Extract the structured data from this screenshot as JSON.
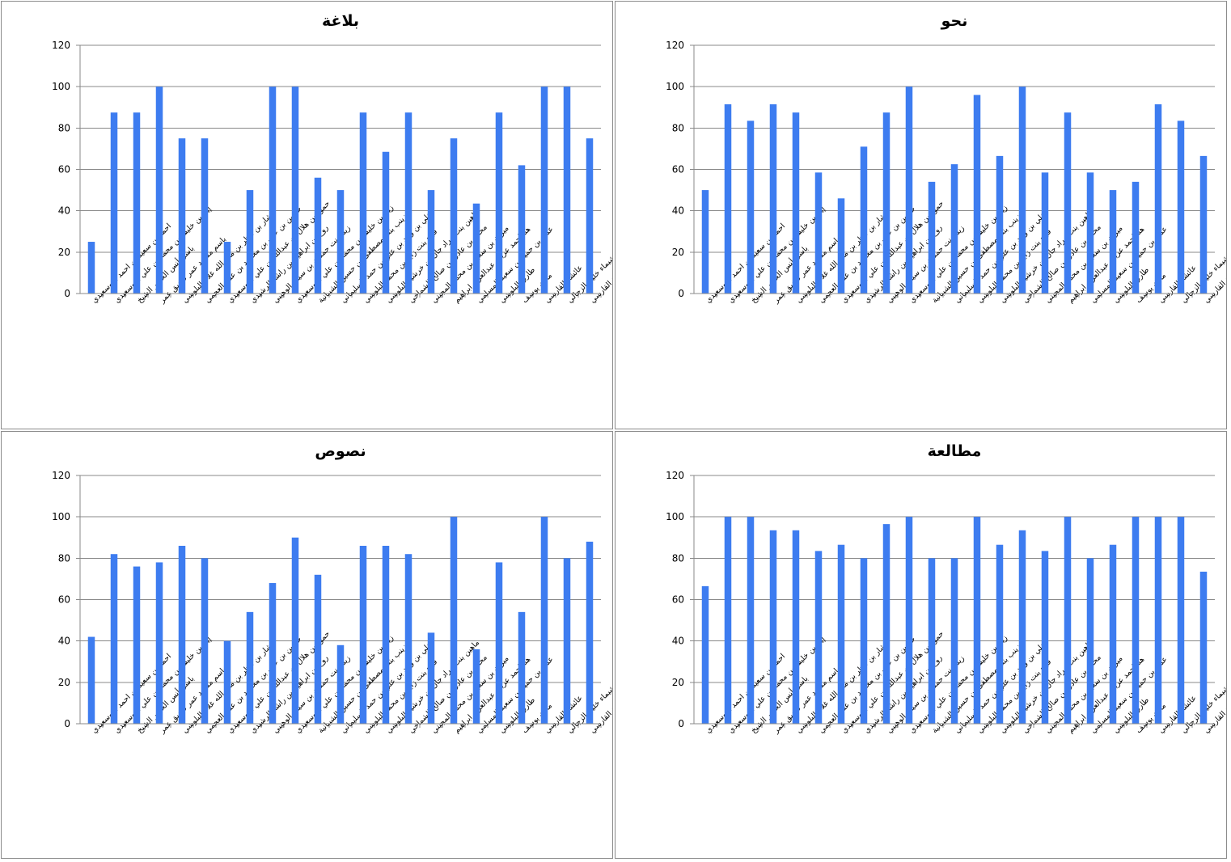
{
  "chart_data": [
    {
      "type": "bar",
      "title": "بلاغة",
      "categories": [
        "احمد بن سعيد بن احمد البوسعيدي",
        "إياد بن خليفة بن محمد بن علي البوسعيدي",
        "باسل أنس الخضر الشيخ",
        "باسم مسعد عمر صديق عمر",
        "بشار بن ناظر بن مال الله غلام البلوشي",
        "حسين بن علي بن محمود بن علي العجمي",
        "حمود بن هلال بن عبدالله بن علي البوسعيدي",
        "روح بن ابراهيم بن راشد الرشيدي",
        "زينة بنت حمدان بن سيف الوهيبي",
        "زياد بن خليفة بن محمد بن علي البوسعيدي",
        "زينب بنت مصطفى بن حسين الشيبانية",
        "علي بن وليد بن علي بن حمد السليماني",
        "فرح بنت زايد بن محمد البلوشي",
        "ماهين بنت مراد جان بن خرشيد البلوشي",
        "محمد بن عادل بن صالح الشماخي",
        "ميران بن سعيد بن محمد المجيني",
        "هنا احمد عريب عبدالعزيز ابراهيم",
        "عمار بن حميد بن سعيد المسلمي",
        "طارق البلوشي",
        "مازن يوسف",
        "عائشة القارسي",
        "شيماء خليل الزجالي",
        "فاطمة القارسي"
      ],
      "values": [
        25,
        87.5,
        87.5,
        100,
        75,
        75,
        25,
        50,
        100,
        100,
        56,
        50,
        87.5,
        68.5,
        87.5,
        50,
        75,
        43.5,
        87.5,
        62,
        100,
        100,
        75
      ],
      "ylim": [
        0,
        120
      ],
      "yticks": [
        0,
        20,
        40,
        60,
        80,
        100,
        120
      ],
      "grid": true,
      "color": "#3d7cf0"
    },
    {
      "type": "bar",
      "title": "نحو",
      "categories": [
        "احمد بن سعيد بن احمد البوسعيدي",
        "إياد بن خليفة بن محمد بن علي البوسعيدي",
        "باسل أنس الخضر الشيخ",
        "باسم مسعد عمر صديق عمر",
        "بشار بن ناظر بن مال الله غلام البلوشي",
        "حسين بن علي بن محمود بن علي العجمي",
        "حمود بن هلال بن عبدالله بن علي البوسعيدي",
        "روح بن ابراهيم بن راشد الرشيدي",
        "زينة بنت حمدان بن سيف الوهيبي",
        "زياد بن خليفة بن محمد بن علي البوسعيدي",
        "زينب بنت مصطفى بن حسين الشيبانية",
        "علي بن وليد بن علي بن حمد السليماني",
        "فرح بنت زايد بن محمد البلوشي",
        "ماهين بنت مراد جان بن خرشيد البلوشي",
        "محمد بن عادل بن صالح الشماخي",
        "ميران بن سعيد بن محمد المجيني",
        "هنا احمد عريب عبدالعزيز ابراهيم",
        "عمار بن حميد بن سعيد المسلمي",
        "طارق البلوشي",
        "مازن يوسف",
        "عائشة القارسي",
        "شيماء خليل الزجالي",
        "فاطمة القارسي"
      ],
      "values": [
        50,
        91.5,
        83.5,
        91.5,
        87.5,
        58.5,
        46,
        71,
        87.5,
        100,
        54,
        62.5,
        96,
        66.5,
        100,
        58.5,
        87.5,
        58.5,
        50,
        54,
        91.5,
        83.5,
        66.5
      ],
      "ylim": [
        0,
        120
      ],
      "yticks": [
        0,
        20,
        40,
        60,
        80,
        100,
        120
      ],
      "grid": true,
      "color": "#3d7cf0"
    },
    {
      "type": "bar",
      "title": "نصوص",
      "categories": [
        "احمد بن سعيد بن احمد البوسعيدي",
        "إياد بن خليفة بن محمد بن علي البوسعيدي",
        "باسل أنس الخضر الشيخ",
        "باسم مسعد عمر صديق عمر",
        "بشار بن ناظر بن مال الله غلام البلوشي",
        "حسين بن علي بن محمود بن علي العجمي",
        "حمود بن هلال بن عبدالله بن علي البوسعيدي",
        "روح بن ابراهيم بن راشد الرشيدي",
        "زينة بنت حمدان بن سيف الوهيبي",
        "زياد بن خليفة بن محمد بن علي البوسعيدي",
        "زينب بنت مصطفى بن حسين الشيبانية",
        "علي بن وليد بن علي بن حمد السليماني",
        "فرح بنت زايد بن محمد البلوشي",
        "ماهين بنت مراد جان بن خرشيد البلوشي",
        "محمد بن عادل بن صالح الشماخي",
        "ميران بن سعيد بن محمد المجيني",
        "هنا احمد عريب عبدالعزيز ابراهيم",
        "عمار بن حميد بن سعيد المسلمي",
        "طارق البلوشي",
        "مازن يوسف",
        "عائشة القارسي",
        "شيماء خليل الزجالي",
        "فاطمة القارسي"
      ],
      "values": [
        42,
        82,
        76,
        78,
        86,
        80,
        40,
        54,
        68,
        90,
        72,
        38,
        86,
        86,
        82,
        44,
        100,
        36,
        78,
        54,
        100,
        80,
        88
      ],
      "ylim": [
        0,
        120
      ],
      "yticks": [
        0,
        20,
        40,
        60,
        80,
        100,
        120
      ],
      "grid": true,
      "color": "#3d7cf0"
    },
    {
      "type": "bar",
      "title": "مطالعة",
      "categories": [
        "احمد بن سعيد بن احمد البوسعيدي",
        "إياد بن خليفة بن محمد بن علي البوسعيدي",
        "باسل أنس الخضر الشيخ",
        "باسم مسعد عمر صديق عمر",
        "بشار بن ناظر بن مال الله غلام البلوشي",
        "حسين بن علي بن محمود بن علي العجمي",
        "حمود بن هلال بن عبدالله بن علي البوسعيدي",
        "روح بن ابراهيم بن راشد الرشيدي",
        "زينة بنت حمدان بن سيف الوهيبي",
        "زياد بن خليفة بن محمد بن علي البوسعيدي",
        "زينب بنت مصطفى بن حسين الشيبانية",
        "علي بن وليد بن علي بن حمد السليماني",
        "فرح بنت زايد بن محمد البلوشي",
        "ماهين بنت مراد جان بن خرشيد البلوشي",
        "محمد بن عادل بن صالح الشماخي",
        "ميران بن سعيد بن محمد المجيني",
        "هنا احمد عريب عبدالعزيز ابراهيم",
        "عمار بن حميد بن سعيد المسلمي",
        "طارق البلوشي",
        "مازن يوسف",
        "عائشة القارسي",
        "شيماء خليل الزجالي",
        "فاطمة القارسي"
      ],
      "values": [
        66.5,
        100,
        100,
        93.5,
        93.5,
        83.5,
        86.5,
        80,
        96.5,
        100,
        80,
        80,
        100,
        86.5,
        93.5,
        83.5,
        100,
        80,
        86.5,
        100,
        100,
        100,
        73.5
      ],
      "ylim": [
        0,
        120
      ],
      "yticks": [
        0,
        20,
        40,
        60,
        80,
        100,
        120
      ],
      "grid": true,
      "color": "#3d7cf0"
    }
  ]
}
